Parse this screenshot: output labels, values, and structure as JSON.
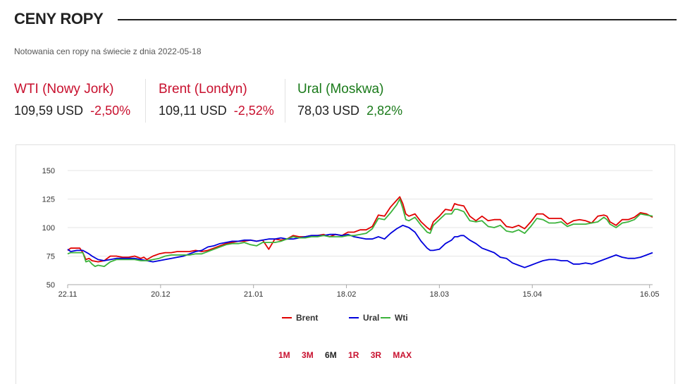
{
  "header": {
    "title": "CENY ROPY"
  },
  "subtitle": "Notowania cen ropy na świecie z dnia 2022-05-18",
  "quotes": [
    {
      "name": "WTI (Nowy Jork)",
      "price": "109,59 USD",
      "change": "-2,50%",
      "name_color": "#c8102e",
      "change_color": "#c8102e"
    },
    {
      "name": "Brent (Londyn)",
      "price": "109,11 USD",
      "change": "-2,52%",
      "name_color": "#c8102e",
      "change_color": "#c8102e"
    },
    {
      "name": "Ural (Moskwa)",
      "price": "78,03 USD",
      "change": "2,82%",
      "name_color": "#1a7a1a",
      "change_color": "#1a7a1a"
    }
  ],
  "range_buttons": [
    {
      "label": "1M",
      "active": false
    },
    {
      "label": "3M",
      "active": false
    },
    {
      "label": "6M",
      "active": true
    },
    {
      "label": "1R",
      "active": false
    },
    {
      "label": "3R",
      "active": false
    },
    {
      "label": "MAX",
      "active": false
    }
  ],
  "colors": {
    "inactive_range": "#c8102e",
    "active_range": "#222222",
    "grid": "#e6e6e6"
  },
  "chart_data": {
    "type": "line",
    "x_ticks": [
      "22.11",
      "20.12",
      "21.01",
      "18.02",
      "18.03",
      "15.04",
      "16.05"
    ],
    "ylim": [
      50,
      150
    ],
    "y_ticks": [
      50,
      75,
      100,
      125,
      150
    ],
    "grid": true,
    "legend_position": "bottom",
    "x_range_days": [
      0,
      178
    ],
    "series": [
      {
        "name": "Brent",
        "color": "#e00000",
        "points": [
          [
            0,
            80
          ],
          [
            1,
            82
          ],
          [
            4,
            82
          ],
          [
            5,
            78
          ],
          [
            6,
            72
          ],
          [
            7,
            73
          ],
          [
            8,
            71
          ],
          [
            10,
            70
          ],
          [
            12,
            71
          ],
          [
            14,
            75
          ],
          [
            16,
            75
          ],
          [
            18,
            74
          ],
          [
            20,
            74
          ],
          [
            22,
            75
          ],
          [
            24,
            73
          ],
          [
            25,
            74
          ],
          [
            26,
            72
          ],
          [
            28,
            75
          ],
          [
            30,
            77
          ],
          [
            32,
            78
          ],
          [
            34,
            78
          ],
          [
            36,
            79
          ],
          [
            38,
            79
          ],
          [
            40,
            79
          ],
          [
            42,
            80
          ],
          [
            44,
            79
          ],
          [
            46,
            80
          ],
          [
            48,
            82
          ],
          [
            50,
            84
          ],
          [
            52,
            86
          ],
          [
            54,
            87
          ],
          [
            56,
            88
          ],
          [
            58,
            88
          ],
          [
            60,
            89
          ],
          [
            62,
            88
          ],
          [
            64,
            89
          ],
          [
            66,
            81
          ],
          [
            68,
            90
          ],
          [
            70,
            89
          ],
          [
            72,
            90
          ],
          [
            74,
            93
          ],
          [
            76,
            92
          ],
          [
            78,
            92
          ],
          [
            80,
            93
          ],
          [
            82,
            93
          ],
          [
            84,
            94
          ],
          [
            86,
            92
          ],
          [
            88,
            94
          ],
          [
            90,
            93
          ],
          [
            92,
            96
          ],
          [
            94,
            96
          ],
          [
            96,
            98
          ],
          [
            98,
            98
          ],
          [
            100,
            101
          ],
          [
            102,
            111
          ],
          [
            104,
            110
          ],
          [
            106,
            118
          ],
          [
            108,
            124
          ],
          [
            109,
            127
          ],
          [
            110,
            121
          ],
          [
            111,
            112
          ],
          [
            112,
            110
          ],
          [
            114,
            112
          ],
          [
            116,
            105
          ],
          [
            118,
            100
          ],
          [
            119,
            98
          ],
          [
            120,
            105
          ],
          [
            122,
            110
          ],
          [
            124,
            116
          ],
          [
            126,
            115
          ],
          [
            127,
            121
          ],
          [
            128,
            120
          ],
          [
            130,
            119
          ],
          [
            132,
            110
          ],
          [
            134,
            106
          ],
          [
            136,
            110
          ],
          [
            138,
            106
          ],
          [
            140,
            107
          ],
          [
            142,
            107
          ],
          [
            144,
            101
          ],
          [
            146,
            100
          ],
          [
            148,
            102
          ],
          [
            150,
            99
          ],
          [
            152,
            105
          ],
          [
            154,
            112
          ],
          [
            156,
            112
          ],
          [
            158,
            108
          ],
          [
            160,
            108
          ],
          [
            162,
            108
          ],
          [
            164,
            103
          ],
          [
            166,
            106
          ],
          [
            168,
            107
          ],
          [
            170,
            106
          ],
          [
            172,
            104
          ],
          [
            174,
            110
          ],
          [
            176,
            111
          ],
          [
            177,
            110
          ],
          [
            178,
            105
          ],
          [
            180,
            102
          ],
          [
            182,
            107
          ],
          [
            184,
            107
          ],
          [
            186,
            109
          ],
          [
            188,
            113
          ],
          [
            190,
            112
          ],
          [
            192,
            109
          ]
        ]
      },
      {
        "name": "Ural",
        "color": "#0000dd",
        "points": [
          [
            0,
            81
          ],
          [
            1,
            79
          ],
          [
            3,
            80
          ],
          [
            5,
            80
          ],
          [
            7,
            77
          ],
          [
            8,
            75
          ],
          [
            10,
            72
          ],
          [
            12,
            71
          ],
          [
            14,
            72
          ],
          [
            16,
            73
          ],
          [
            18,
            73
          ],
          [
            20,
            73
          ],
          [
            22,
            73
          ],
          [
            24,
            72
          ],
          [
            26,
            71
          ],
          [
            28,
            70
          ],
          [
            30,
            71
          ],
          [
            32,
            72
          ],
          [
            34,
            73
          ],
          [
            36,
            74
          ],
          [
            38,
            75
          ],
          [
            40,
            77
          ],
          [
            42,
            79
          ],
          [
            44,
            80
          ],
          [
            46,
            83
          ],
          [
            48,
            84
          ],
          [
            50,
            86
          ],
          [
            52,
            87
          ],
          [
            54,
            88
          ],
          [
            56,
            88
          ],
          [
            58,
            89
          ],
          [
            60,
            89
          ],
          [
            62,
            88
          ],
          [
            64,
            89
          ],
          [
            66,
            90
          ],
          [
            68,
            90
          ],
          [
            70,
            91
          ],
          [
            72,
            90
          ],
          [
            74,
            90
          ],
          [
            76,
            91
          ],
          [
            78,
            92
          ],
          [
            80,
            93
          ],
          [
            82,
            93
          ],
          [
            84,
            93
          ],
          [
            86,
            94
          ],
          [
            88,
            94
          ],
          [
            90,
            93
          ],
          [
            92,
            94
          ],
          [
            94,
            92
          ],
          [
            96,
            91
          ],
          [
            98,
            90
          ],
          [
            100,
            90
          ],
          [
            102,
            92
          ],
          [
            104,
            90
          ],
          [
            106,
            95
          ],
          [
            108,
            99
          ],
          [
            110,
            102
          ],
          [
            112,
            100
          ],
          [
            114,
            96
          ],
          [
            116,
            88
          ],
          [
            118,
            82
          ],
          [
            119,
            80
          ],
          [
            120,
            80
          ],
          [
            122,
            81
          ],
          [
            124,
            86
          ],
          [
            126,
            89
          ],
          [
            127,
            92
          ],
          [
            128,
            92
          ],
          [
            129,
            93
          ],
          [
            130,
            93
          ],
          [
            132,
            89
          ],
          [
            134,
            86
          ],
          [
            136,
            82
          ],
          [
            138,
            80
          ],
          [
            140,
            78
          ],
          [
            142,
            74
          ],
          [
            144,
            73
          ],
          [
            146,
            69
          ],
          [
            148,
            67
          ],
          [
            150,
            65
          ],
          [
            152,
            67
          ],
          [
            154,
            69
          ],
          [
            156,
            71
          ],
          [
            158,
            72
          ],
          [
            160,
            72
          ],
          [
            162,
            71
          ],
          [
            164,
            71
          ],
          [
            166,
            68
          ],
          [
            168,
            68
          ],
          [
            170,
            69
          ],
          [
            172,
            68
          ],
          [
            174,
            70
          ],
          [
            176,
            72
          ],
          [
            178,
            74
          ],
          [
            180,
            76
          ],
          [
            182,
            74
          ],
          [
            184,
            73
          ],
          [
            186,
            73
          ],
          [
            188,
            74
          ],
          [
            190,
            76
          ],
          [
            192,
            78
          ]
        ]
      },
      {
        "name": "Wti",
        "color": "#3bb33b",
        "points": [
          [
            0,
            77
          ],
          [
            1,
            78
          ],
          [
            3,
            78
          ],
          [
            5,
            78
          ],
          [
            6,
            70
          ],
          [
            7,
            71
          ],
          [
            8,
            68
          ],
          [
            9,
            66
          ],
          [
            10,
            67
          ],
          [
            12,
            66
          ],
          [
            14,
            70
          ],
          [
            16,
            72
          ],
          [
            18,
            72
          ],
          [
            20,
            72
          ],
          [
            22,
            72
          ],
          [
            24,
            71
          ],
          [
            26,
            71
          ],
          [
            28,
            72
          ],
          [
            30,
            73
          ],
          [
            32,
            75
          ],
          [
            34,
            76
          ],
          [
            36,
            76
          ],
          [
            38,
            76
          ],
          [
            40,
            76
          ],
          [
            42,
            77
          ],
          [
            44,
            77
          ],
          [
            46,
            79
          ],
          [
            48,
            81
          ],
          [
            50,
            83
          ],
          [
            52,
            85
          ],
          [
            54,
            86
          ],
          [
            56,
            86
          ],
          [
            58,
            87
          ],
          [
            60,
            85
          ],
          [
            62,
            84
          ],
          [
            64,
            87
          ],
          [
            66,
            87
          ],
          [
            68,
            87
          ],
          [
            70,
            88
          ],
          [
            72,
            90
          ],
          [
            74,
            92
          ],
          [
            76,
            91
          ],
          [
            78,
            91
          ],
          [
            80,
            92
          ],
          [
            82,
            92
          ],
          [
            84,
            93
          ],
          [
            86,
            92
          ],
          [
            88,
            92
          ],
          [
            90,
            92
          ],
          [
            92,
            93
          ],
          [
            94,
            93
          ],
          [
            96,
            94
          ],
          [
            98,
            95
          ],
          [
            100,
            99
          ],
          [
            102,
            108
          ],
          [
            104,
            107
          ],
          [
            106,
            113
          ],
          [
            108,
            120
          ],
          [
            109,
            125
          ],
          [
            110,
            117
          ],
          [
            111,
            107
          ],
          [
            112,
            106
          ],
          [
            114,
            109
          ],
          [
            116,
            102
          ],
          [
            118,
            96
          ],
          [
            119,
            95
          ],
          [
            120,
            102
          ],
          [
            122,
            107
          ],
          [
            124,
            112
          ],
          [
            126,
            112
          ],
          [
            127,
            116
          ],
          [
            128,
            116
          ],
          [
            130,
            114
          ],
          [
            132,
            106
          ],
          [
            134,
            105
          ],
          [
            136,
            106
          ],
          [
            138,
            101
          ],
          [
            140,
            100
          ],
          [
            142,
            102
          ],
          [
            144,
            97
          ],
          [
            146,
            96
          ],
          [
            148,
            98
          ],
          [
            150,
            95
          ],
          [
            152,
            101
          ],
          [
            154,
            108
          ],
          [
            156,
            107
          ],
          [
            158,
            104
          ],
          [
            160,
            104
          ],
          [
            162,
            105
          ],
          [
            164,
            101
          ],
          [
            166,
            103
          ],
          [
            168,
            103
          ],
          [
            170,
            103
          ],
          [
            172,
            104
          ],
          [
            174,
            105
          ],
          [
            176,
            109
          ],
          [
            177,
            107
          ],
          [
            178,
            103
          ],
          [
            180,
            100
          ],
          [
            182,
            104
          ],
          [
            184,
            105
          ],
          [
            186,
            107
          ],
          [
            188,
            112
          ],
          [
            190,
            111
          ],
          [
            192,
            110
          ]
        ]
      }
    ]
  }
}
